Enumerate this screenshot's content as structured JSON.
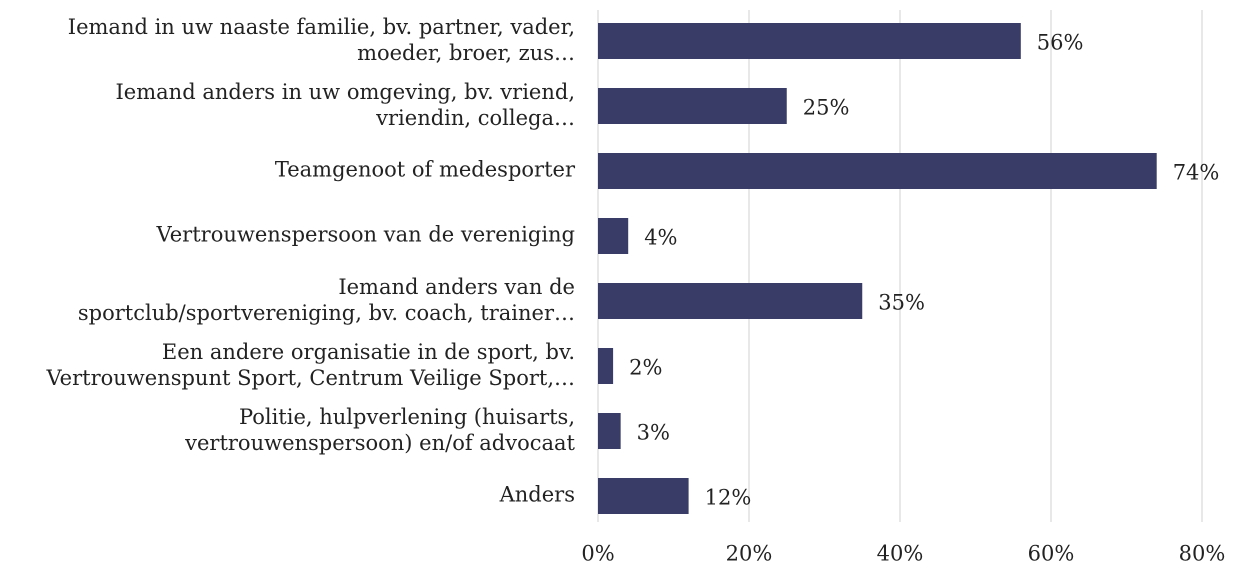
{
  "chart_data": {
    "type": "bar",
    "orientation": "horizontal",
    "categories": [
      "Iemand in uw naaste familie, bv. partner, vader,\nmoeder, broer, zus…",
      "Iemand anders in uw omgeving, bv. vriend,\nvriendin, collega…",
      "Teamgenoot of medesporter",
      "Vertrouwenspersoon van de vereniging",
      "Iemand anders van de\nsportclub/sportvereniging, bv. coach, trainer…",
      "Een andere organisatie in de sport, bv.\nVertrouwenspunt Sport, Centrum Veilige Sport,…",
      "Politie, hulpverlening (huisarts,\nvertrouwenspersoon) en/of advocaat",
      "Anders"
    ],
    "values": [
      56,
      25,
      74,
      4,
      35,
      2,
      3,
      12
    ],
    "value_labels": [
      "56%",
      "25%",
      "74%",
      "4%",
      "35%",
      "2%",
      "3%",
      "12%"
    ],
    "color": "#383c66",
    "xlim": [
      0,
      80
    ],
    "xticks": [
      {
        "value": 0,
        "label": "0%"
      },
      {
        "value": 20,
        "label": "20%"
      },
      {
        "value": 40,
        "label": "40%"
      },
      {
        "value": 60,
        "label": "60%"
      },
      {
        "value": 80,
        "label": "80%"
      }
    ],
    "grid": true
  }
}
